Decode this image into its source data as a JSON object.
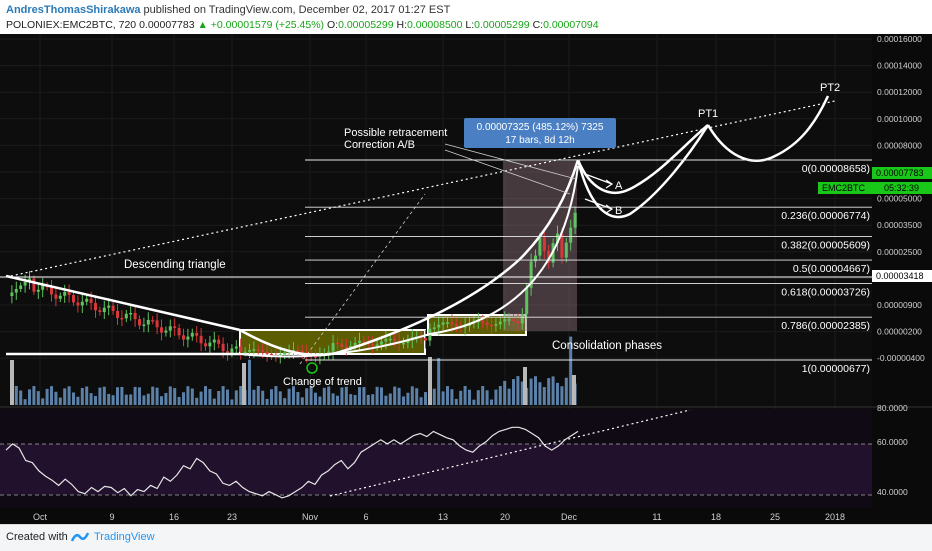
{
  "header": {
    "author": "AndresThomasShirakawa",
    "published": " published on TradingView.com, December 02, 2017 01:27 EST",
    "symbol": "POLONIEX:EMC2BTC, 720",
    "last": "0.00007783",
    "change": "+0.00001579 (+25.45%)",
    "o_label": "O:",
    "o": "0.00005299",
    "h_label": "H:",
    "h": "0.00008500",
    "l_label": "L:",
    "l": "0.00005299",
    "c_label": "C:",
    "c": "0.00007094"
  },
  "footer": {
    "created": "Created with",
    "brand": "TradingView"
  },
  "colors": {
    "bg": "#0a0a0a",
    "up": "#5fc35f",
    "down": "#d8383a",
    "volume": "#6a96c4",
    "line": "#ffffff",
    "fib": "#e8e8e8",
    "highlight": "#6b6b00",
    "range_box": "#8a6e7a",
    "badge": "#4a7fc4",
    "price_tag": "#19c719"
  },
  "chart_data": {
    "type": "candlestick",
    "symbol": "EMC2BTC",
    "timeframe": "720",
    "y_axis_ticks": [
      "0.00016000",
      "0.00014000",
      "0.00012000",
      "0.00010000",
      "0.00008000",
      "0.00006500",
      "0.00005000",
      "0.00003500",
      "0.00002500",
      "0.00001700",
      "0.00000900",
      "0.00000200",
      "-0.00000400"
    ],
    "x_axis_ticks": [
      "Oct",
      "9",
      "16",
      "23",
      "Nov",
      "6",
      "13",
      "20",
      "Dec",
      "11",
      "18",
      "25",
      "2018"
    ],
    "price_tags": {
      "last": "0.00007783",
      "symbol": "EMC2BTC",
      "countdown": "05:32:39",
      "level": "0.00003418"
    },
    "fib_levels": [
      {
        "label": "0(0.00008658)",
        "value": 8.658e-05
      },
      {
        "label": "0.236(0.00006774)",
        "value": 6.774e-05
      },
      {
        "label": "0.382(0.00005609)",
        "value": 5.609e-05
      },
      {
        "label": "0.5(0.00004667)",
        "value": 4.667e-05
      },
      {
        "label": "0.618(0.00003726)",
        "value": 3.726e-05
      },
      {
        "label": "0.786(0.00002385)",
        "value": 2.385e-05
      },
      {
        "label": "1(0.00000677)",
        "value": 6.77e-06
      }
    ],
    "annotations": {
      "measure_line1": "0.00007325 (485.12%) 7325",
      "measure_line2": "17 bars, 8d 12h",
      "retracement_line1": "Possible retracement",
      "retracement_line2": "Correction A/B",
      "descending_triangle": "Descending triangle",
      "consolidation": "Consolidation phases",
      "change_of_trend": "Change of trend",
      "target_1": "PT1",
      "target_2": "PT2",
      "scenario_a": "A",
      "scenario_b": "B"
    },
    "oscillator_ticks": [
      "80.0000",
      "60.0000",
      "40.0000"
    ],
    "oscillator_levels": [
      70,
      30
    ],
    "oscillator_values": [
      70,
      76,
      72,
      60,
      58,
      50,
      45,
      41,
      36,
      42,
      37,
      30,
      28,
      34,
      30,
      35,
      34,
      29,
      33,
      26,
      32,
      30,
      36,
      33,
      44,
      40,
      46,
      55,
      52,
      62,
      58,
      50,
      47,
      38,
      36,
      40,
      34,
      30,
      28,
      26,
      30,
      27,
      24,
      26,
      30,
      34,
      40,
      37,
      46,
      50,
      56,
      60,
      52,
      58,
      68,
      72,
      76,
      80,
      76,
      80,
      76,
      80,
      84,
      86,
      83,
      88,
      85,
      82,
      80,
      74,
      70,
      68,
      74,
      78,
      84,
      88,
      90,
      92,
      92,
      90,
      86,
      82,
      74,
      70,
      74,
      80,
      84,
      88
    ],
    "candles_note": "estimated price path"
  }
}
